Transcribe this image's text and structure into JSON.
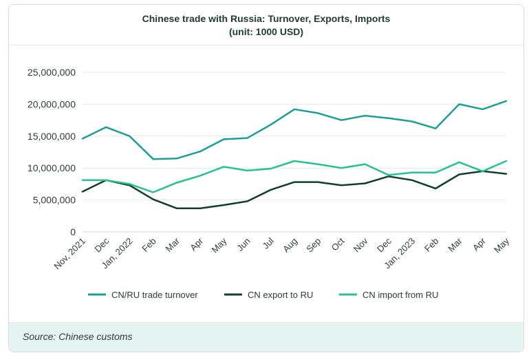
{
  "chart_data": {
    "type": "line",
    "title": "Chinese trade with Russia: Turnover, Exports, Imports",
    "subtitle": "(unit: 1000 USD)",
    "source": "Source: Chinese customs",
    "x": [
      "Nov, 2021",
      "Dec",
      "Jan, 2022",
      "Feb",
      "Mar",
      "Apr",
      "May",
      "Jun",
      "Jul",
      "Aug",
      "Sep",
      "Oct",
      "Nov",
      "Dec",
      "Jan, 2023",
      "Feb",
      "Mar",
      "Apr",
      "May"
    ],
    "ylim": [
      0,
      25000000
    ],
    "yticks": [
      0,
      5000000,
      10000000,
      15000000,
      20000000,
      25000000
    ],
    "ytick_labels": [
      "0",
      "5,000,000",
      "10,000,000",
      "15,000,000",
      "20,000,000",
      "25,000,000"
    ],
    "grid": true,
    "legend_position": "bottom",
    "series": [
      {
        "name": "CN/RU trade turnover",
        "color": "#1a9e96",
        "values": [
          14600000,
          16400000,
          15000000,
          11400000,
          11500000,
          12600000,
          14500000,
          14700000,
          16800000,
          19200000,
          18600000,
          17500000,
          18200000,
          17800000,
          17300000,
          16200000,
          20000000,
          19200000,
          20500000
        ]
      },
      {
        "name": "CN export to RU",
        "color": "#0f3d2e",
        "values": [
          6300000,
          8100000,
          7300000,
          5100000,
          3700000,
          3700000,
          4200000,
          4800000,
          6600000,
          7800000,
          7800000,
          7300000,
          7600000,
          8700000,
          8100000,
          6800000,
          9000000,
          9500000,
          9100000
        ]
      },
      {
        "name": "CN import from RU",
        "color": "#23c292",
        "values": [
          8100000,
          8100000,
          7500000,
          6200000,
          7700000,
          8800000,
          10200000,
          9600000,
          9900000,
          11100000,
          10600000,
          10000000,
          10600000,
          8900000,
          9300000,
          9300000,
          10900000,
          9500000,
          11100000
        ]
      }
    ]
  }
}
